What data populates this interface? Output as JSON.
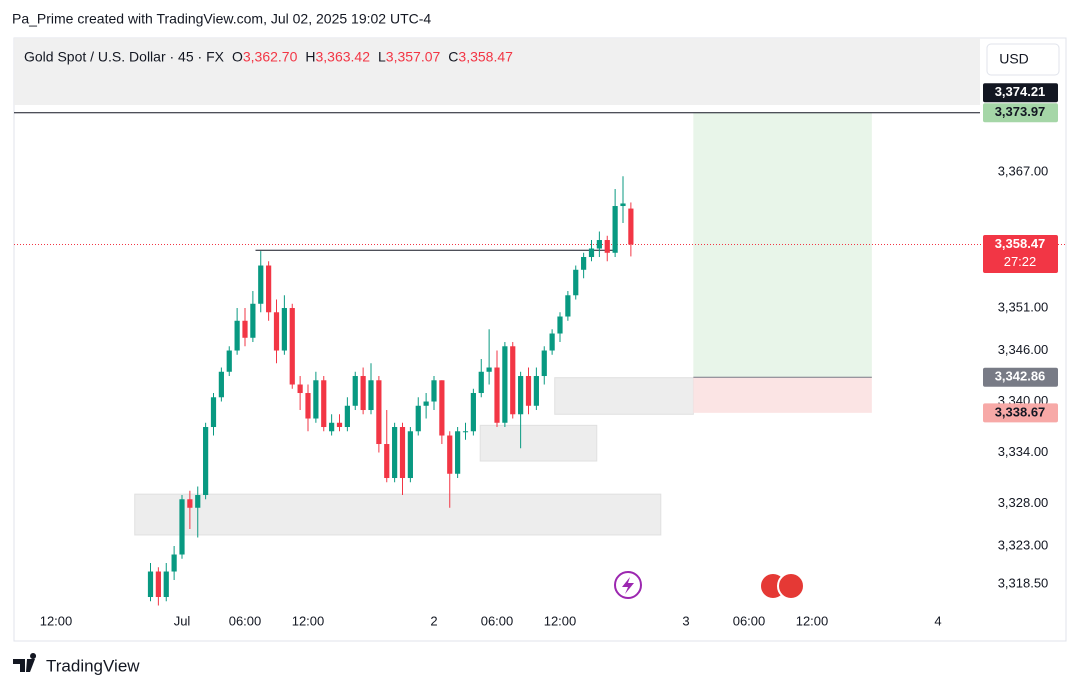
{
  "header": {
    "attribution": "Pa_Prime created with TradingView.com, Jul 02, 2025 19:02 UTC-4"
  },
  "footer": {
    "brand": "TradingView"
  },
  "chart_data": {
    "type": "candlestick",
    "title": "Gold Spot / U.S. Dollar · 45 · FX",
    "ohlc_labels": [
      "O",
      "H",
      "L",
      "C"
    ],
    "legend_ohlc": [
      "3,362.70",
      "3,363.42",
      "3,357.07",
      "3,358.47"
    ],
    "currency": "USD",
    "countdown": "27:22",
    "colors": {
      "up": "#089981",
      "down": "#f23645"
    },
    "xlim": [
      -16,
      76
    ],
    "xticks": [
      {
        "value": -12,
        "label": "12:00"
      },
      {
        "value": 0,
        "label": "Jul"
      },
      {
        "value": 6,
        "label": "06:00"
      },
      {
        "value": 12,
        "label": "12:00"
      },
      {
        "value": 24,
        "label": "2"
      },
      {
        "value": 30,
        "label": "06:00"
      },
      {
        "value": 36,
        "label": "12:00"
      },
      {
        "value": 48,
        "label": "3"
      },
      {
        "value": 54,
        "label": "06:00"
      },
      {
        "value": 60,
        "label": "12:00"
      },
      {
        "value": 72,
        "label": "4"
      }
    ],
    "ylim": [
      3316.06,
      3374.65
    ],
    "yticks": [
      {
        "value": 3367,
        "label": "3,367.00"
      },
      {
        "value": 3351,
        "label": "3,351.00"
      },
      {
        "value": 3346,
        "label": "3,346.00"
      },
      {
        "value": 3340,
        "label": "3,340.00"
      },
      {
        "value": 3334,
        "label": "3,334.00"
      },
      {
        "value": 3328,
        "label": "3,328.00"
      },
      {
        "value": 3323,
        "label": "3,323.00"
      },
      {
        "value": 3318.5,
        "label": "3,318.50"
      }
    ],
    "x": [
      -3,
      -2.25,
      -1.5,
      -0.75,
      0,
      0.75,
      1.5,
      2.25,
      3,
      3.75,
      4.5,
      5.25,
      6,
      6.75,
      7.5,
      8.25,
      9,
      9.75,
      10.5,
      11.25,
      12,
      12.75,
      13.5,
      14.25,
      15,
      15.75,
      16.5,
      17.25,
      18,
      18.75,
      19.5,
      20.25,
      21,
      21.75,
      22.5,
      23.25,
      24,
      24.75,
      25.5,
      26.25,
      27,
      27.75,
      28.5,
      29.25,
      30,
      30.75,
      31.5,
      32.25,
      33,
      33.75,
      34.5,
      35.25,
      36,
      36.75,
      37.5,
      38.25,
      39,
      39.75,
      40.5,
      41.25,
      42,
      42.75
    ],
    "candles": [
      [
        3317,
        3321,
        3316.5,
        3320
      ],
      [
        3320,
        3320.5,
        3316,
        3317
      ],
      [
        3317,
        3321,
        3316.5,
        3320
      ],
      [
        3320,
        3323,
        3319,
        3322
      ],
      [
        3322,
        3329,
        3321.5,
        3328.5
      ],
      [
        3328.5,
        3329.5,
        3325,
        3327.5
      ],
      [
        3327.5,
        3330,
        3324,
        3329
      ],
      [
        3329,
        3337.5,
        3328.5,
        3337
      ],
      [
        3337,
        3341,
        3336,
        3340.5
      ],
      [
        3340.5,
        3344,
        3340,
        3343.5
      ],
      [
        3343.5,
        3346.5,
        3343,
        3346
      ],
      [
        3346,
        3351,
        3345.5,
        3349.5
      ],
      [
        3349.5,
        3351,
        3346.5,
        3347.5
      ],
      [
        3347.5,
        3353,
        3347,
        3351.5
      ],
      [
        3351.5,
        3357.7,
        3350.5,
        3356
      ],
      [
        3356,
        3356.5,
        3349.5,
        3350.5
      ],
      [
        3350.5,
        3352,
        3344.5,
        3346
      ],
      [
        3346,
        3352.5,
        3345.5,
        3351
      ],
      [
        3351,
        3351.5,
        3341.5,
        3342
      ],
      [
        3342,
        3343,
        3339,
        3341
      ],
      [
        3341,
        3342,
        3336.5,
        3338
      ],
      [
        3338,
        3343.5,
        3337.5,
        3342.5
      ],
      [
        3342.5,
        3343,
        3336.5,
        3337
      ],
      [
        3336.5,
        3338.5,
        3336,
        3337.5
      ],
      [
        3337.5,
        3338.5,
        3336.5,
        3337
      ],
      [
        3337,
        3340.5,
        3336.5,
        3339.5
      ],
      [
        3339.5,
        3343.5,
        3339,
        3343
      ],
      [
        3343,
        3344,
        3338.5,
        3339
      ],
      [
        3339,
        3344.5,
        3338.5,
        3342.5
      ],
      [
        3342.5,
        3343,
        3334,
        3335
      ],
      [
        3335,
        3339,
        3330.5,
        3331
      ],
      [
        3331,
        3337.5,
        3330.5,
        3337
      ],
      [
        3337,
        3337.5,
        3329,
        3331
      ],
      [
        3331,
        3337,
        3330.5,
        3336.5
      ],
      [
        3336.5,
        3340.5,
        3336,
        3339.5
      ],
      [
        3339.5,
        3341,
        3338,
        3340
      ],
      [
        3340,
        3343,
        3339,
        3342.5
      ],
      [
        3342.5,
        3342.5,
        3335,
        3336
      ],
      [
        3336,
        3336.5,
        3327.5,
        3331.5
      ],
      [
        3331.5,
        3337,
        3331,
        3336.5
      ],
      [
        3336.5,
        3337.5,
        3335.5,
        3336.5
      ],
      [
        3336.5,
        3341.5,
        3336,
        3341
      ],
      [
        3341,
        3345,
        3340.5,
        3343.5
      ],
      [
        3343.5,
        3348.5,
        3342,
        3344
      ],
      [
        3344,
        3346,
        3337,
        3337.5
      ],
      [
        3337.5,
        3347,
        3337,
        3346.5
      ],
      [
        3346.5,
        3347,
        3338,
        3338.5
      ],
      [
        3338.5,
        3343.5,
        3334.5,
        3343
      ],
      [
        3343,
        3344,
        3338.5,
        3339.5
      ],
      [
        3339.5,
        3344,
        3339,
        3343
      ],
      [
        3343,
        3346.5,
        3342,
        3346
      ],
      [
        3346,
        3348.5,
        3345.5,
        3348
      ],
      [
        3348,
        3350.5,
        3347,
        3350
      ],
      [
        3350,
        3353,
        3349.5,
        3352.5
      ],
      [
        3352.5,
        3356,
        3352,
        3355.5
      ],
      [
        3355.5,
        3357.5,
        3354.5,
        3357
      ],
      [
        3357,
        3359,
        3356.5,
        3358
      ],
      [
        3358,
        3360,
        3357,
        3359
      ],
      [
        3359,
        3359.5,
        3356.5,
        3357.5
      ],
      [
        3357.5,
        3365,
        3357,
        3363
      ],
      [
        3363,
        3366.5,
        3361,
        3363.3
      ],
      [
        3362.7,
        3363.42,
        3357.07,
        3358.47
      ]
    ],
    "zones": [
      {
        "x": [
          -4.5,
          45.6
        ],
        "y": [
          3324.3,
          3329.1
        ]
      },
      {
        "x": [
          28.4,
          39.5
        ],
        "y": [
          3333.0,
          3337.2
        ]
      },
      {
        "x": [
          35.5,
          48.7
        ],
        "y": [
          3338.5,
          3342.8
        ]
      }
    ],
    "trendline": {
      "x": [
        7,
        41
      ],
      "y": 3357.8
    },
    "hline": 3373.97,
    "position": {
      "x": [
        48.7,
        65.7
      ],
      "entry": 3342.86,
      "target": 3373.97,
      "stop": 3338.67
    },
    "price_tags": [
      {
        "value": 3374.21,
        "label": "3,374.21",
        "color": "#131722",
        "text_color": "#ffffff"
      },
      {
        "value": 3373.97,
        "label": "3,373.97",
        "color": "#a5d6a7",
        "text_color": "#131722"
      },
      {
        "value": 3358.47,
        "label": "3,358.47",
        "color": "#f23645",
        "text_color": "#ffffff"
      },
      {
        "value": 3342.86,
        "label": "3,342.86",
        "color": "#787b86",
        "text_color": "#ffffff"
      },
      {
        "value": 3338.67,
        "label": "3,338.67",
        "color": "#f7a9a7",
        "text_color": "#131722"
      }
    ]
  }
}
